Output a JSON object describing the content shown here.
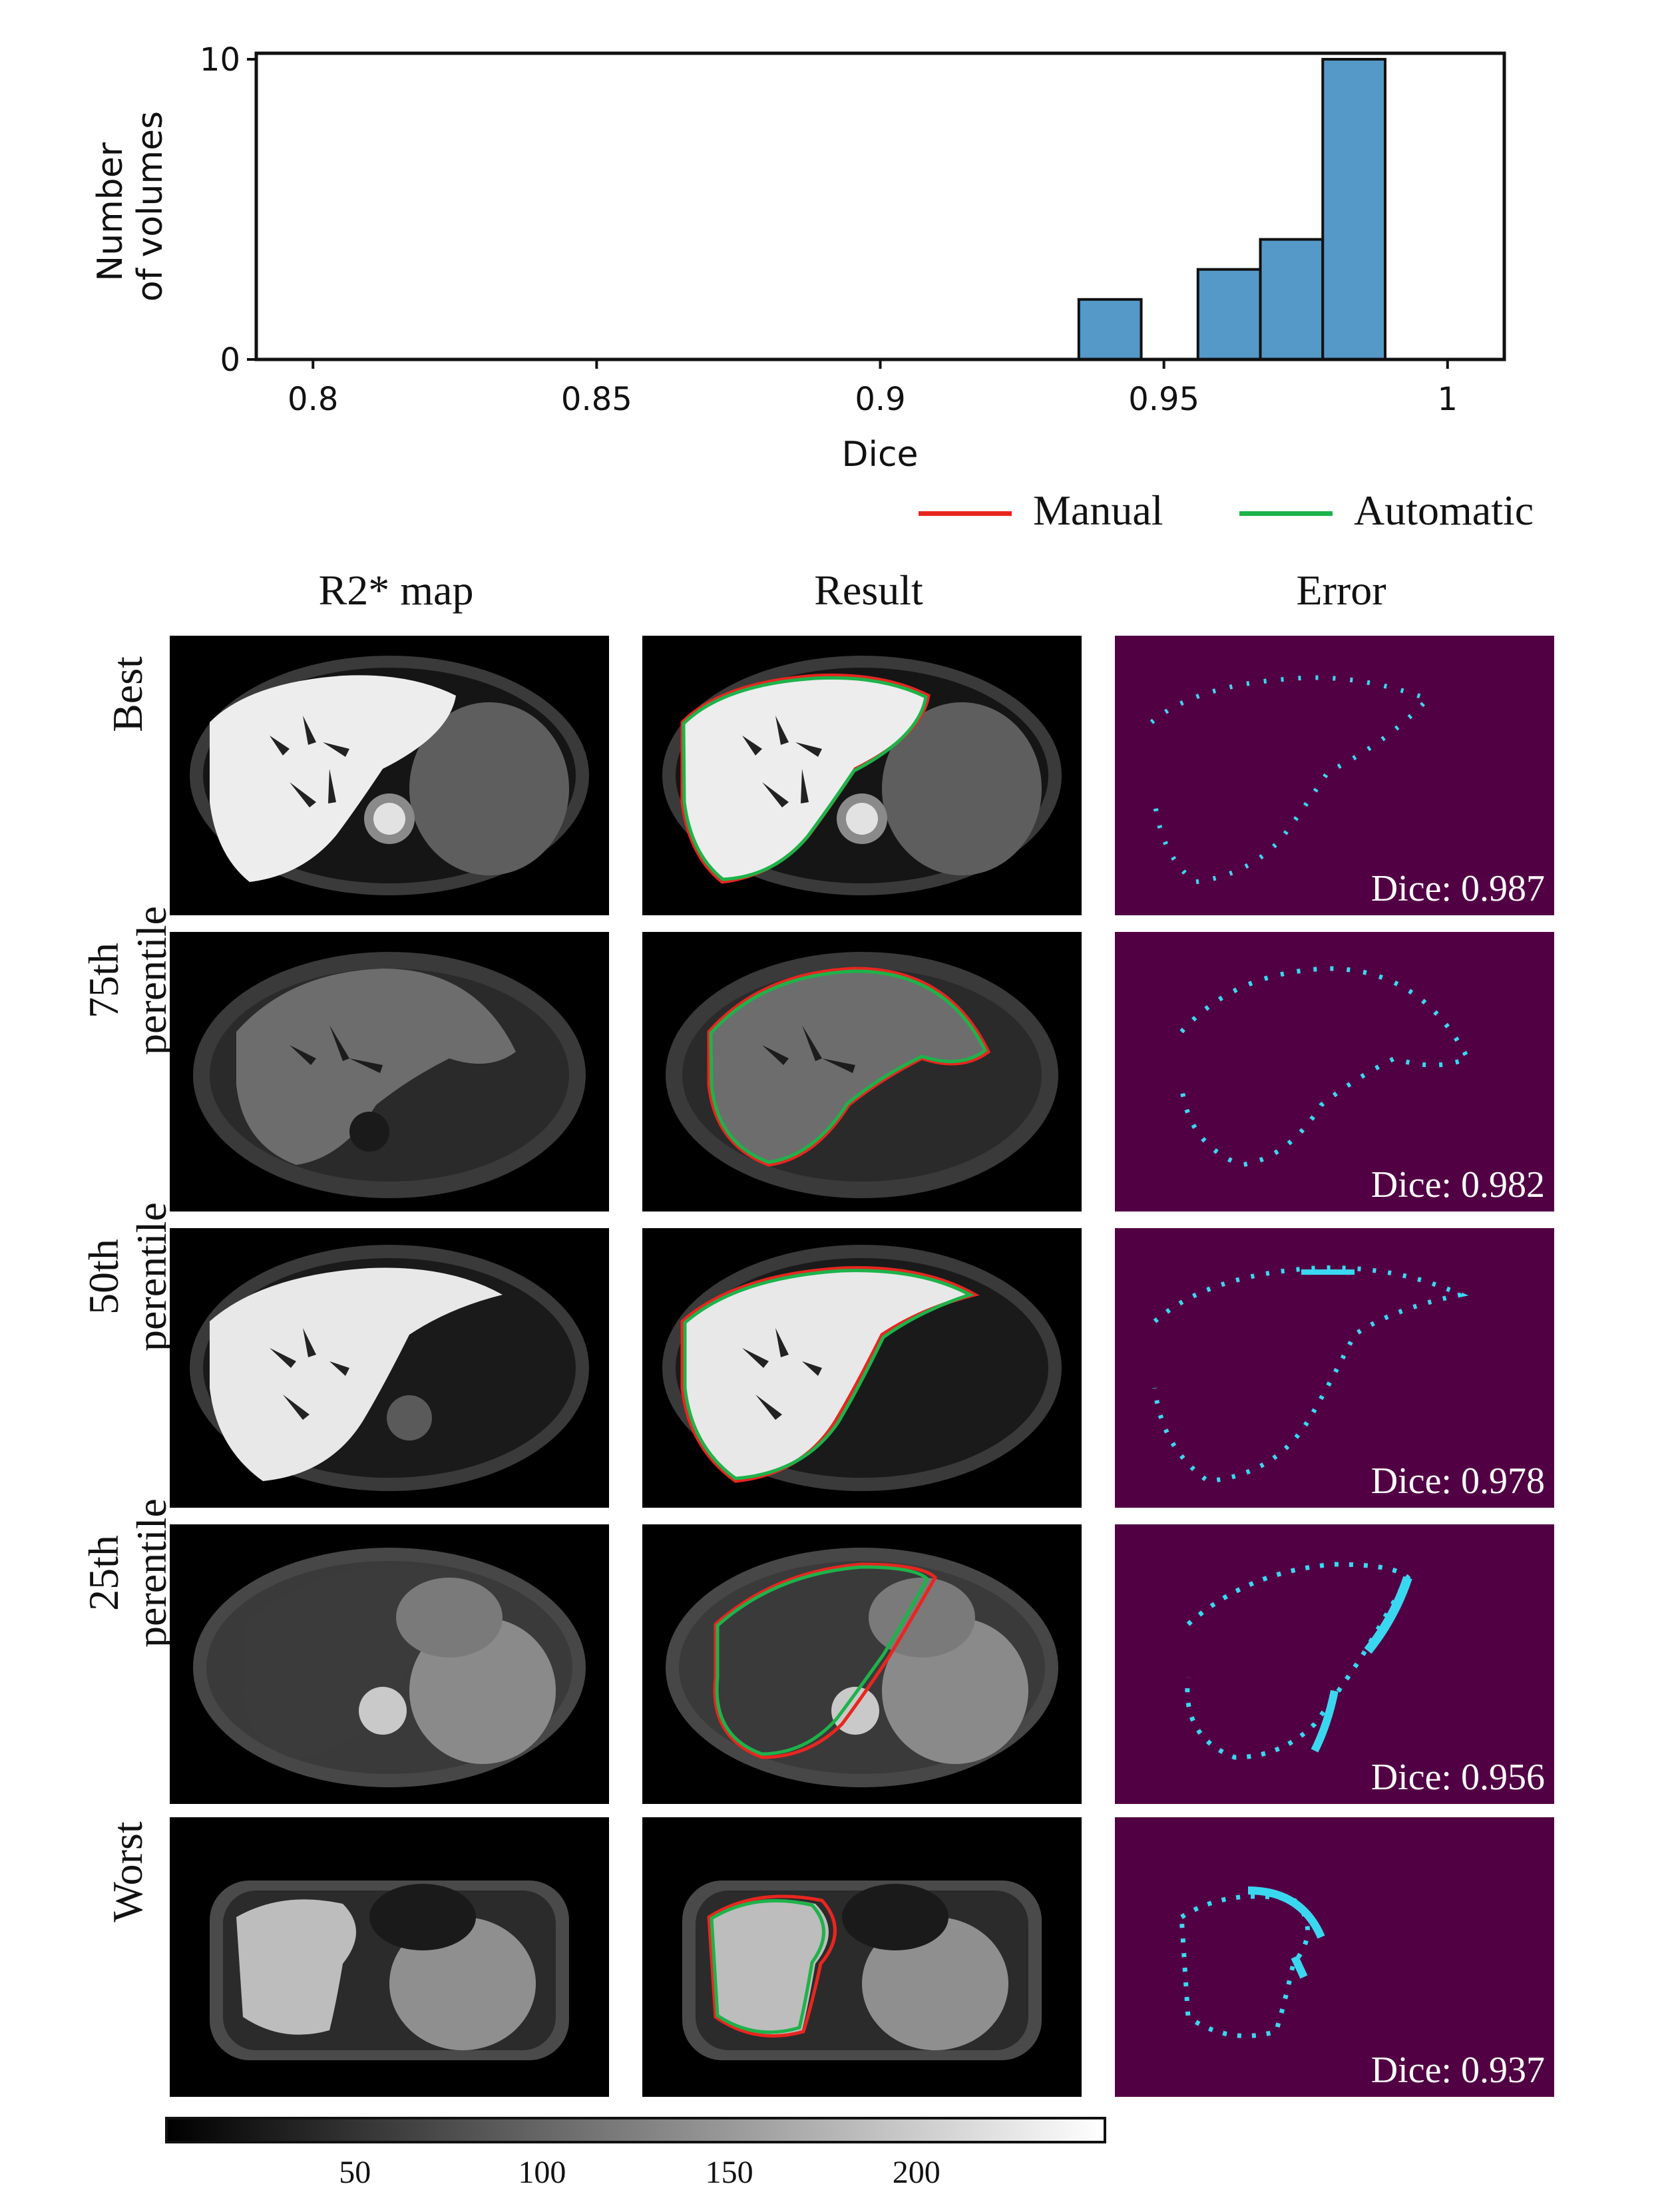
{
  "chart_data": [
    {
      "type": "bar",
      "x_bin_edges": [
        0.935,
        0.946,
        0.956,
        0.967,
        0.978,
        0.989
      ],
      "values": [
        2,
        0,
        3,
        4,
        10
      ],
      "xlabel": "Dice",
      "ylabel": "Number\nof volumes",
      "ylabel_lines": [
        "Number",
        "of volumes"
      ],
      "xlim": [
        0.79,
        1.01
      ],
      "ylim": [
        0,
        10.2
      ],
      "xticks": [
        0.8,
        0.85,
        0.9,
        0.95,
        1
      ],
      "xtick_labels": [
        "0.8",
        "0.85",
        "0.9",
        "0.95",
        "1"
      ],
      "yticks": [
        0,
        10
      ],
      "ytick_labels": [
        "0",
        "10"
      ],
      "bar_color": "#5599c8",
      "grid": false
    }
  ],
  "legend": {
    "items": [
      {
        "label": "Manual",
        "color": "#e8261f"
      },
      {
        "label": "Automatic",
        "color": "#1db34a"
      }
    ]
  },
  "columns": [
    "R2* map",
    "Result",
    "Error"
  ],
  "rows": [
    {
      "label": [
        "Best"
      ],
      "dice": "Dice: 0.987"
    },
    {
      "label": [
        "75th",
        "perentile"
      ],
      "dice": "Dice: 0.982"
    },
    {
      "label": [
        "50th",
        "perentile"
      ],
      "dice": "Dice: 0.978"
    },
    {
      "label": [
        "25th",
        "perentile"
      ],
      "dice": "Dice: 0.956"
    },
    {
      "label": [
        "Worst"
      ],
      "dice": "Dice: 0.937"
    }
  ],
  "colorbar": {
    "ticks": [
      "50",
      "100",
      "150",
      "200"
    ],
    "tick_values": [
      50,
      100,
      150,
      200
    ],
    "range": [
      0,
      250
    ]
  },
  "colors": {
    "error_background": "#520044",
    "error_pixels": "#3ad8f0"
  }
}
